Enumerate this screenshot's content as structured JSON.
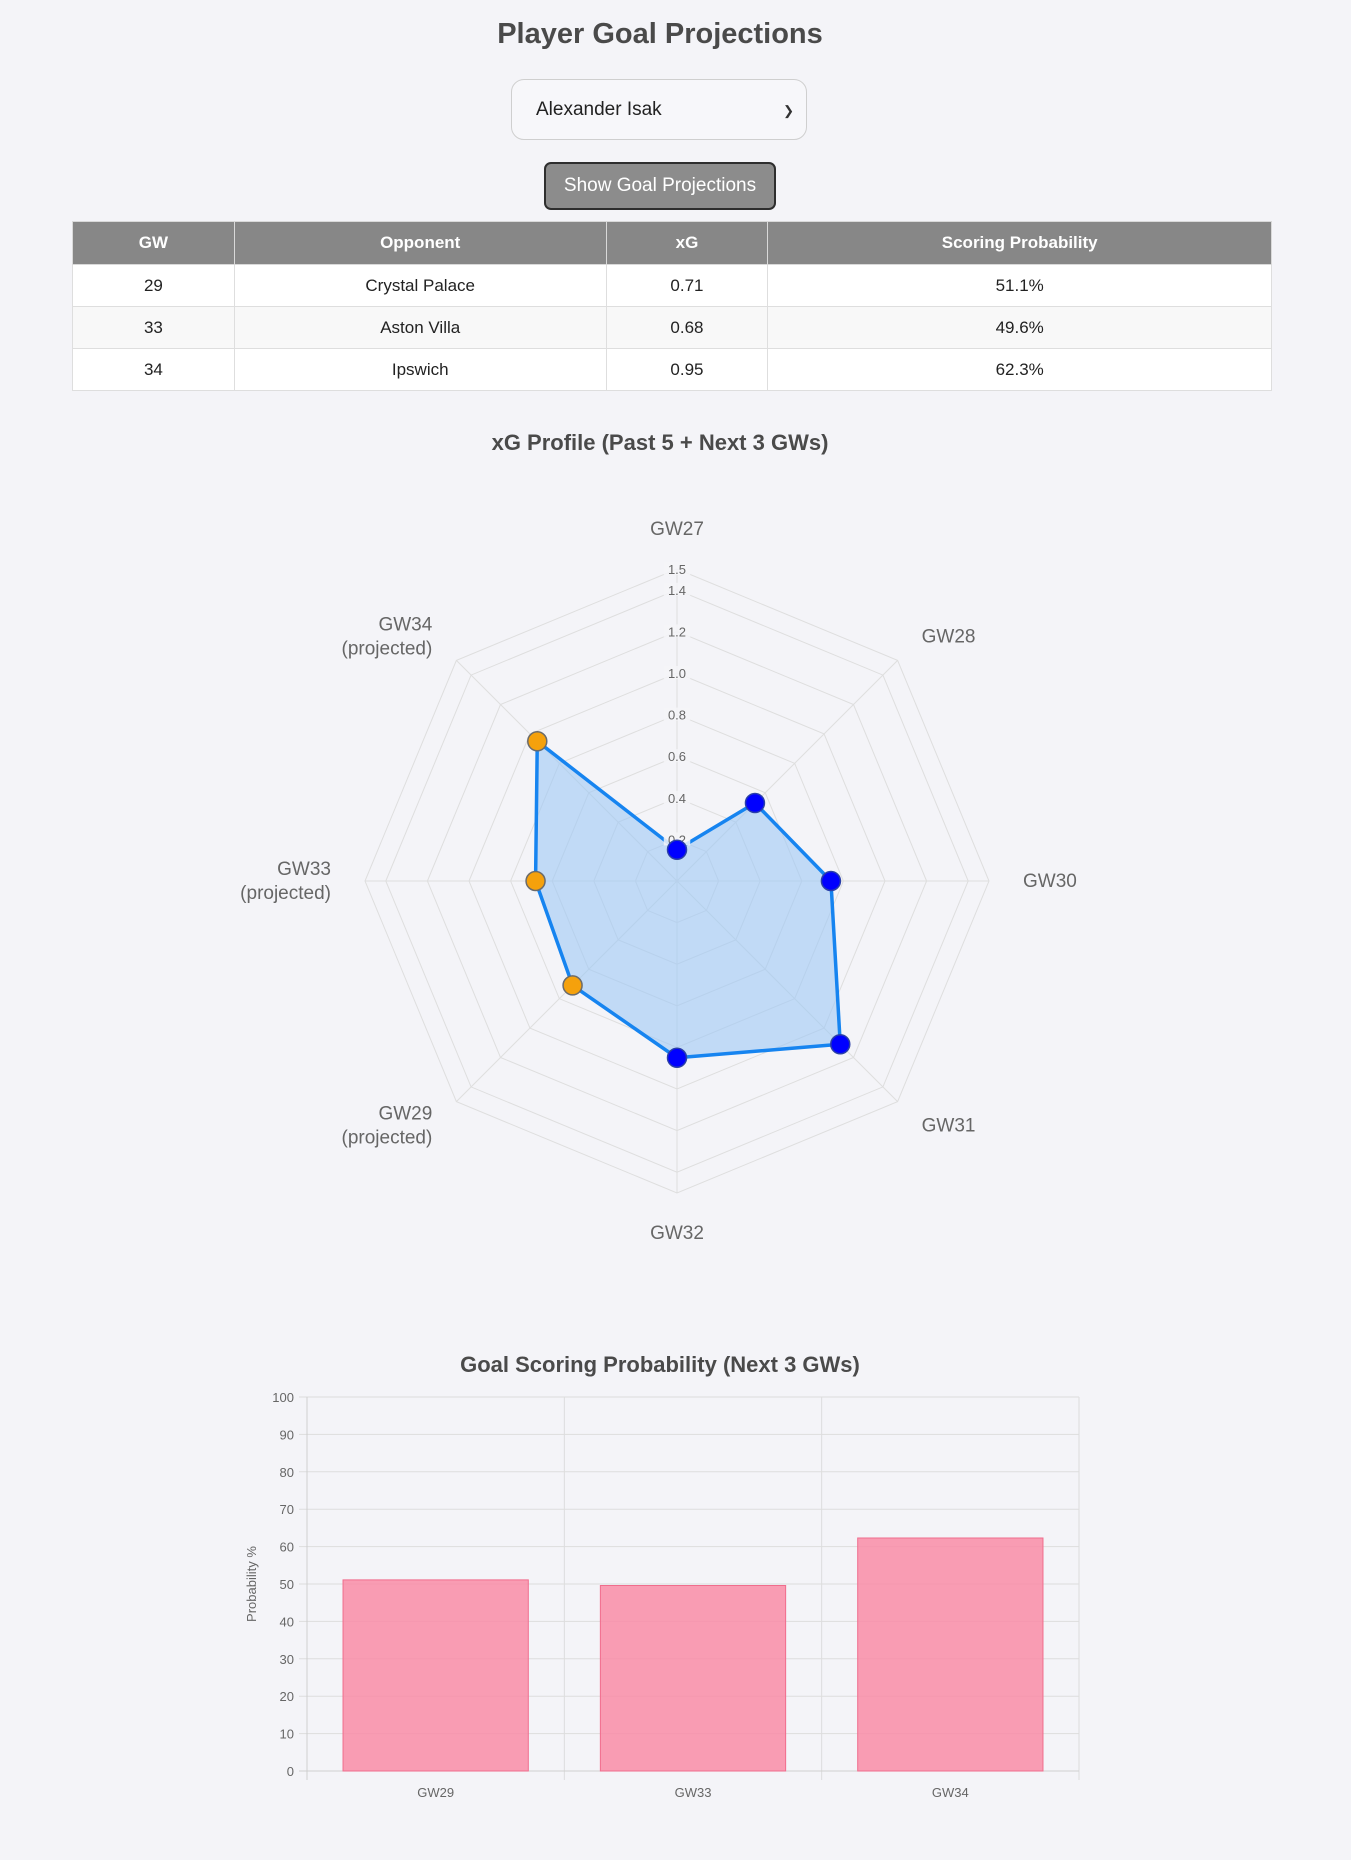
{
  "page": {
    "title": "Player Goal Projections",
    "player_select": {
      "value": "Alexander Isak"
    },
    "show_button": "Show Goal Projections"
  },
  "table": {
    "headers": [
      "GW",
      "Opponent",
      "xG",
      "Scoring Probability"
    ],
    "rows": [
      [
        "29",
        "Crystal Palace",
        "0.71",
        "51.1%"
      ],
      [
        "33",
        "Aston Villa",
        "0.68",
        "49.6%"
      ],
      [
        "34",
        "Ipswich",
        "0.95",
        "62.3%"
      ]
    ]
  },
  "colors": {
    "past": "#0000ff",
    "projected": "#f5a10c",
    "line": "#1684f0",
    "fill": "#9ec8f5",
    "bar": "#f98ca7"
  },
  "chart_data": [
    {
      "type": "radar",
      "title": "xG Profile (Past 5 + Next 3 GWs)",
      "categories": [
        "GW27",
        "GW28",
        "GW30",
        "GW31",
        "GW32",
        "GW29 (projected)",
        "GW33 (projected)",
        "GW34 (projected)"
      ],
      "values": [
        0.15,
        0.53,
        0.74,
        1.11,
        0.85,
        0.71,
        0.68,
        0.95
      ],
      "projected": [
        false,
        false,
        false,
        false,
        false,
        true,
        true,
        true
      ],
      "rlim": [
        0,
        1.5
      ],
      "ticks": [
        "0.2",
        "0.4",
        "0.6",
        "0.8",
        "1.0",
        "1.2",
        "1.4",
        "1.5"
      ]
    },
    {
      "type": "bar",
      "title": "Goal Scoring Probability (Next 3 GWs)",
      "categories": [
        "GW29",
        "GW33",
        "GW34"
      ],
      "values": [
        51.1,
        49.6,
        62.3
      ],
      "ylabel": "Probability %",
      "xlabel": "",
      "ylim": [
        0,
        100
      ],
      "yticks": [
        "0",
        "10",
        "20",
        "30",
        "40",
        "50",
        "60",
        "70",
        "80",
        "90",
        "100"
      ]
    }
  ]
}
